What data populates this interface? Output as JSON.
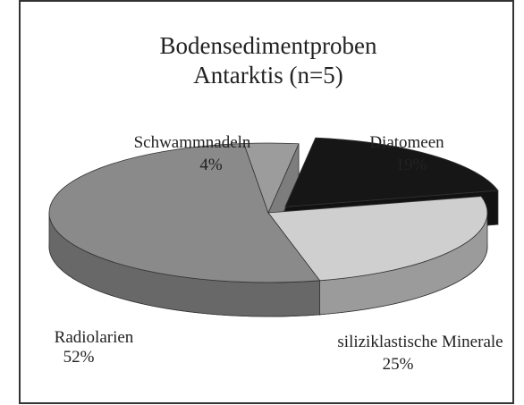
{
  "chart_data": {
    "type": "pie",
    "title": "Bodensedimentproben Antarktis (n=5)",
    "categories": [
      "Diatomeen",
      "siliziklastische Minerale",
      "Radiolarien",
      "Schwammnadeln"
    ],
    "values": [
      19,
      25,
      52,
      4
    ],
    "value_labels": [
      "19%",
      "25%",
      "52%",
      "4%"
    ],
    "colors": [
      "#161616",
      "#cfcfcf",
      "#8a8a8a",
      "#9c9c9c"
    ]
  }
}
